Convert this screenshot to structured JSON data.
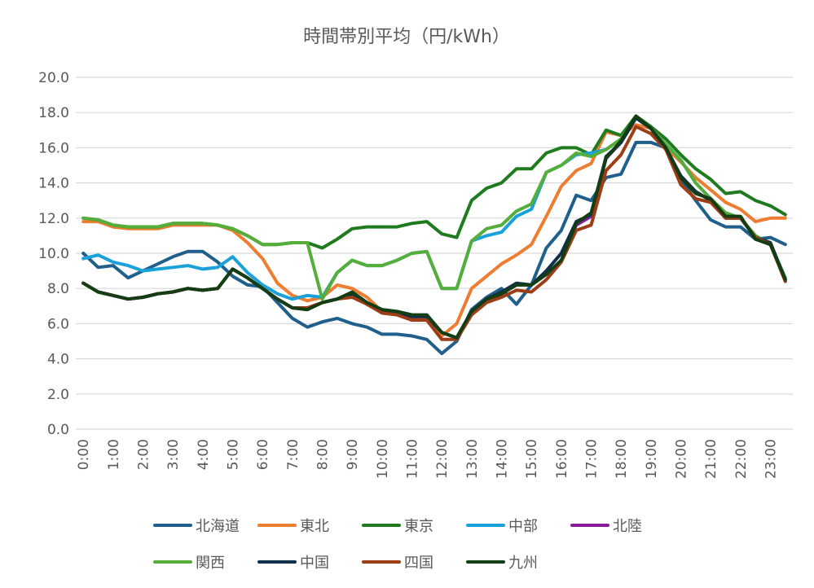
{
  "chart_data": {
    "type": "line",
    "title": "時間帯別平均（円/kWh）",
    "xlabel": "",
    "ylabel": "",
    "ylim": [
      0,
      20
    ],
    "yticks": [
      "0.0",
      "2.0",
      "4.0",
      "6.0",
      "8.0",
      "10.0",
      "12.0",
      "14.0",
      "16.0",
      "18.0",
      "20.0"
    ],
    "x": [
      "0:00",
      "0:30",
      "1:00",
      "1:30",
      "2:00",
      "2:30",
      "3:00",
      "3:30",
      "4:00",
      "4:30",
      "5:00",
      "5:30",
      "6:00",
      "6:30",
      "7:00",
      "7:30",
      "8:00",
      "8:30",
      "9:00",
      "9:30",
      "10:00",
      "10:30",
      "11:00",
      "11:30",
      "12:00",
      "12:30",
      "13:00",
      "13:30",
      "14:00",
      "14:30",
      "15:00",
      "15:30",
      "16:00",
      "16:30",
      "17:00",
      "17:30",
      "18:00",
      "18:30",
      "19:00",
      "19:30",
      "20:00",
      "20:30",
      "21:00",
      "21:30",
      "22:00",
      "22:30",
      "23:00",
      "23:30"
    ],
    "x_tick_labels": [
      "0:00",
      "1:00",
      "2:00",
      "3:00",
      "4:00",
      "5:00",
      "6:00",
      "7:00",
      "8:00",
      "9:00",
      "10:00",
      "11:00",
      "12:00",
      "13:00",
      "14:00",
      "15:00",
      "16:00",
      "17:00",
      "18:00",
      "19:00",
      "20:00",
      "21:00",
      "22:00",
      "23:00"
    ],
    "grid": true,
    "legend_position": "bottom",
    "series": [
      {
        "name": "北海道",
        "color": "#1f5f8b",
        "values": [
          10.0,
          9.2,
          9.3,
          8.6,
          9.0,
          9.4,
          9.8,
          10.1,
          10.1,
          9.5,
          8.7,
          8.2,
          8.1,
          7.2,
          6.3,
          5.8,
          6.1,
          6.3,
          6.0,
          5.8,
          5.4,
          5.4,
          5.3,
          5.1,
          4.3,
          5.0,
          6.8,
          7.5,
          8.0,
          7.1,
          8.2,
          10.3,
          11.3,
          13.3,
          13.0,
          14.3,
          14.5,
          16.3,
          16.3,
          16.0,
          14.2,
          13.0,
          11.9,
          11.5,
          11.5,
          10.8,
          10.9,
          10.5
        ]
      },
      {
        "name": "東北",
        "color": "#ed7d31",
        "values": [
          11.8,
          11.8,
          11.5,
          11.4,
          11.4,
          11.4,
          11.6,
          11.6,
          11.6,
          11.6,
          11.3,
          10.6,
          9.7,
          8.3,
          7.6,
          7.3,
          7.5,
          8.2,
          8.0,
          7.5,
          6.7,
          6.6,
          6.3,
          6.3,
          5.3,
          6.0,
          8.0,
          8.7,
          9.4,
          9.9,
          10.5,
          12.1,
          13.8,
          14.7,
          15.1,
          16.9,
          16.7,
          17.3,
          17.1,
          16.0,
          15.2,
          14.3,
          13.6,
          12.9,
          12.5,
          11.8,
          12.0,
          12.0
        ]
      },
      {
        "name": "東京",
        "color": "#1e7b1e",
        "values": [
          12.0,
          11.9,
          11.6,
          11.5,
          11.5,
          11.5,
          11.7,
          11.7,
          11.7,
          11.6,
          11.4,
          11.0,
          10.5,
          10.5,
          10.6,
          10.6,
          10.3,
          10.8,
          11.4,
          11.5,
          11.5,
          11.5,
          11.7,
          11.8,
          11.1,
          10.9,
          13.0,
          13.7,
          14.0,
          14.8,
          14.8,
          15.7,
          16.0,
          16.0,
          15.6,
          17.0,
          16.7,
          17.8,
          17.2,
          16.5,
          15.6,
          14.8,
          14.2,
          13.4,
          13.5,
          13.0,
          12.7,
          12.2
        ]
      },
      {
        "name": "中部",
        "color": "#1ba1d9",
        "values": [
          9.7,
          9.9,
          9.5,
          9.3,
          9.0,
          9.1,
          9.2,
          9.3,
          9.1,
          9.2,
          9.8,
          8.9,
          8.2,
          7.7,
          7.4,
          7.6,
          7.5,
          8.9,
          9.6,
          9.3,
          9.3,
          9.6,
          10.0,
          10.1,
          8.0,
          8.0,
          10.7,
          11.0,
          11.2,
          12.1,
          12.5,
          14.6,
          15.0,
          15.6,
          15.7,
          15.9,
          16.5,
          17.7,
          17.1,
          16.2,
          15.3,
          14.0,
          13.1,
          12.3,
          12.0,
          11.0,
          10.5,
          8.6
        ]
      },
      {
        "name": "北陸",
        "color": "#8b1a9e",
        "values": [
          8.3,
          7.8,
          7.6,
          7.4,
          7.5,
          7.7,
          7.8,
          8.0,
          7.9,
          8.0,
          9.1,
          8.6,
          8.0,
          7.4,
          6.9,
          6.8,
          7.2,
          7.4,
          7.7,
          7.1,
          6.7,
          6.6,
          6.4,
          6.4,
          5.5,
          5.2,
          6.7,
          7.3,
          7.7,
          8.2,
          8.2,
          8.8,
          9.6,
          11.6,
          12.1,
          15.4,
          16.3,
          17.7,
          17.1,
          16.0,
          14.4,
          13.5,
          13.0,
          12.0,
          12.0,
          10.9,
          10.6,
          8.5
        ]
      },
      {
        "name": "関西",
        "color": "#55ad3a",
        "values": [
          12.0,
          11.9,
          11.6,
          11.5,
          11.5,
          11.5,
          11.7,
          11.7,
          11.7,
          11.6,
          11.4,
          11.0,
          10.5,
          10.5,
          10.6,
          10.6,
          7.4,
          8.9,
          9.6,
          9.3,
          9.3,
          9.6,
          10.0,
          10.1,
          8.0,
          8.0,
          10.7,
          11.4,
          11.6,
          12.4,
          12.8,
          14.6,
          15.0,
          15.7,
          15.5,
          15.9,
          16.5,
          17.7,
          17.1,
          16.2,
          15.3,
          14.0,
          13.1,
          12.3,
          12.0,
          11.0,
          10.5,
          8.6
        ]
      },
      {
        "name": "中国",
        "color": "#0f2f4d",
        "values": [
          8.3,
          7.8,
          7.6,
          7.4,
          7.5,
          7.7,
          7.8,
          8.0,
          7.9,
          8.0,
          9.1,
          8.6,
          8.0,
          7.4,
          6.9,
          6.8,
          7.2,
          7.4,
          7.7,
          7.1,
          6.7,
          6.6,
          6.4,
          6.4,
          5.5,
          5.2,
          6.7,
          7.4,
          7.8,
          8.3,
          8.2,
          9.0,
          10.0,
          11.8,
          12.2,
          15.5,
          16.3,
          17.7,
          17.1,
          16.0,
          14.4,
          13.5,
          13.0,
          12.0,
          12.0,
          10.9,
          10.6,
          8.5
        ]
      },
      {
        "name": "四国",
        "color": "#9c3d15",
        "values": [
          8.3,
          7.8,
          7.6,
          7.4,
          7.5,
          7.7,
          7.8,
          8.0,
          7.9,
          8.0,
          9.1,
          8.6,
          8.0,
          7.4,
          6.9,
          6.9,
          7.2,
          7.4,
          7.5,
          7.1,
          6.6,
          6.5,
          6.2,
          6.2,
          5.1,
          5.1,
          6.5,
          7.2,
          7.5,
          7.9,
          7.8,
          8.5,
          9.5,
          11.3,
          11.6,
          14.7,
          15.6,
          17.2,
          16.8,
          15.9,
          13.9,
          13.1,
          12.9,
          12.0,
          12.0,
          10.9,
          10.5,
          8.4
        ]
      },
      {
        "name": "九州",
        "color": "#133d13",
        "values": [
          8.3,
          7.8,
          7.6,
          7.4,
          7.5,
          7.7,
          7.8,
          8.0,
          7.9,
          8.0,
          9.1,
          8.6,
          8.0,
          7.4,
          6.9,
          6.8,
          7.2,
          7.4,
          7.8,
          7.2,
          6.8,
          6.7,
          6.5,
          6.5,
          5.5,
          5.2,
          6.7,
          7.4,
          7.7,
          8.2,
          8.2,
          8.8,
          9.6,
          11.7,
          12.3,
          15.4,
          16.4,
          17.8,
          17.1,
          16.0,
          14.3,
          13.4,
          13.1,
          12.1,
          12.1,
          10.8,
          10.5,
          8.5
        ]
      }
    ]
  }
}
